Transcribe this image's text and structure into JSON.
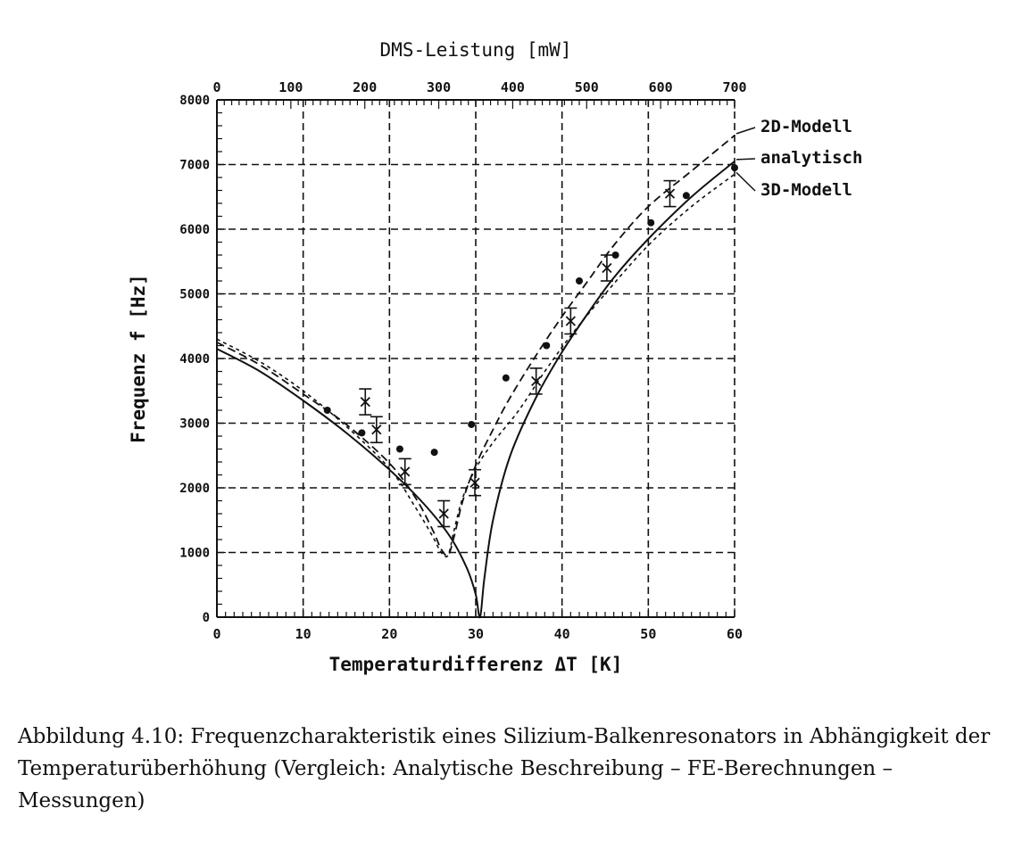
{
  "chart_data": {
    "type": "line",
    "xlabel": "Temperaturdifferenz ΔT [K]",
    "x2label": "DMS-Leistung [mW]",
    "ylabel": "Frequenz f [Hz]",
    "xlim": [
      0,
      60
    ],
    "x2lim": [
      0,
      700
    ],
    "ylim": [
      0,
      8000
    ],
    "x_ticks": [
      0,
      10,
      20,
      30,
      40,
      50,
      60
    ],
    "x2_ticks": [
      0,
      100,
      200,
      300,
      400,
      500,
      600,
      700
    ],
    "y_ticks": [
      0,
      1000,
      2000,
      3000,
      4000,
      5000,
      6000,
      7000,
      8000
    ],
    "grid": true,
    "series": [
      {
        "name": "2D-Modell",
        "style": "dashed",
        "x": [
          0,
          5,
          10,
          15,
          20,
          23,
          25,
          26,
          26.8,
          27.5,
          28.5,
          30,
          32,
          34,
          37,
          40,
          43,
          46,
          50,
          55,
          60
        ],
        "y": [
          4250,
          3900,
          3450,
          2980,
          2380,
          1850,
          1350,
          1050,
          960,
          1250,
          1800,
          2350,
          2900,
          3400,
          4050,
          4650,
          5200,
          5750,
          6350,
          6900,
          7450
        ]
      },
      {
        "name": "analytisch",
        "style": "solid",
        "x": [
          0,
          5,
          10,
          15,
          20,
          24,
          27,
          29,
          30,
          30.5,
          31,
          32,
          34,
          37,
          40,
          43,
          46,
          50,
          55,
          60
        ],
        "y": [
          4150,
          3800,
          3350,
          2850,
          2280,
          1750,
          1250,
          750,
          350,
          0,
          600,
          1500,
          2500,
          3400,
          4100,
          4700,
          5250,
          5850,
          6500,
          7050
        ]
      },
      {
        "name": "3D-Modell",
        "style": "dotted",
        "x": [
          0,
          5,
          10,
          15,
          20,
          23,
          25,
          26,
          26.8,
          27.5,
          28.5,
          30,
          32,
          35,
          38,
          41,
          45,
          50,
          55,
          60
        ],
        "y": [
          4300,
          3950,
          3500,
          2950,
          2300,
          1700,
          1250,
          1000,
          960,
          1350,
          1850,
          2300,
          2700,
          3200,
          3800,
          4350,
          5000,
          5750,
          6350,
          6850
        ]
      }
    ],
    "measurements_dot": {
      "x": [
        12.8,
        16.8,
        21.2,
        25.2,
        29.5,
        33.5,
        38.2,
        42,
        46.2,
        50.3,
        54.4,
        60
      ],
      "y": [
        3200,
        2850,
        2600,
        2550,
        2980,
        3700,
        4200,
        5200,
        5600,
        6100,
        6520,
        6950
      ]
    },
    "measurements_cross": {
      "x": [
        17.2,
        18.5,
        21.8,
        26.3,
        29.9,
        37,
        41,
        45.2,
        52.5
      ],
      "y": [
        3330,
        2900,
        2250,
        1600,
        2080,
        3650,
        4580,
        5400,
        6550
      ],
      "err": [
        200,
        200,
        200,
        200,
        200,
        200,
        200,
        200,
        200
      ]
    }
  },
  "caption": "Abbildung 4.10: Frequenzcharakteristik eines Silizium-Balkenresonators in Abhängigkeit der Temperaturüberhöhung (Vergleich: Analytische Beschreibung – FE-Berechnungen – Messungen)"
}
